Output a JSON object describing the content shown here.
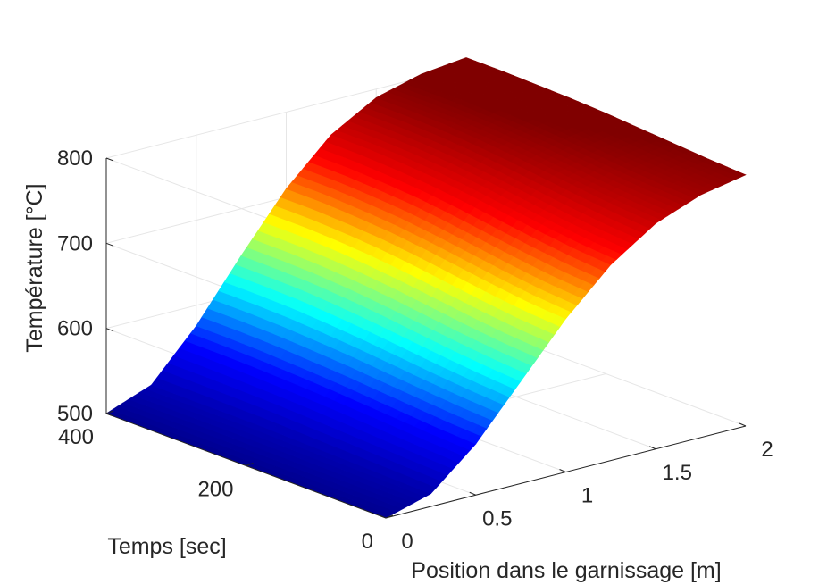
{
  "chart_data": {
    "type": "surface",
    "title": "",
    "xlabel": "Position dans le garnissage [m]",
    "ylabel": "Temps [sec]",
    "zlabel": "Température [°C]",
    "xlim": [
      0,
      2
    ],
    "ylim": [
      0,
      400
    ],
    "zlim": [
      500,
      800
    ],
    "xticks": [
      0,
      0.5,
      1,
      1.5,
      2
    ],
    "xtick_labels": [
      "0",
      "0.5",
      "1",
      "1.5",
      "2"
    ],
    "yticks": [
      0,
      200,
      400
    ],
    "ytick_labels": [
      "0",
      "200",
      "400"
    ],
    "zticks": [
      500,
      600,
      700,
      800
    ],
    "ztick_labels": [
      "500",
      "600",
      "700",
      "800"
    ],
    "grid": true,
    "colormap": "jet",
    "colormap_stops": [
      "#00008f",
      "#0000ff",
      "#00ffff",
      "#ffff00",
      "#ff0000",
      "#800000"
    ],
    "surface": {
      "x": [
        0,
        0.25,
        0.5,
        0.75,
        1.0,
        1.25,
        1.5,
        1.75,
        2.0
      ],
      "y": [
        0,
        50,
        100,
        150,
        200,
        250,
        300,
        350,
        400
      ],
      "z": [
        [
          500,
          515,
          560,
          620,
          680,
          730,
          765,
          785,
          795
        ],
        [
          500,
          516,
          562,
          623,
          683,
          733,
          768,
          787,
          797
        ],
        [
          500,
          517,
          565,
          627,
          688,
          738,
          772,
          790,
          800
        ],
        [
          500,
          518,
          568,
          632,
          694,
          744,
          777,
          794,
          803
        ],
        [
          500,
          519,
          571,
          637,
          700,
          750,
          782,
          798,
          806
        ],
        [
          500,
          520,
          573,
          641,
          705,
          755,
          786,
          801,
          808
        ],
        [
          500,
          520,
          575,
          644,
          708,
          758,
          789,
          803,
          809
        ],
        [
          500,
          520,
          576,
          645,
          710,
          760,
          790,
          804,
          810
        ],
        [
          500,
          520,
          576,
          645,
          710,
          760,
          790,
          804,
          810
        ]
      ]
    }
  }
}
